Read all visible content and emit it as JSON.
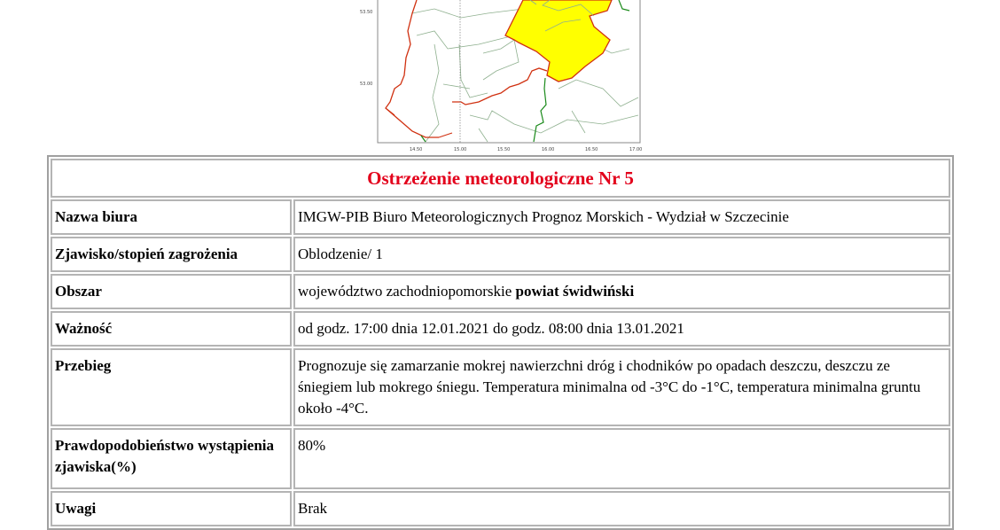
{
  "map": {
    "y_ticks": [
      "53.50",
      "53.00"
    ],
    "x_ticks": [
      "14.50",
      "15.00",
      "15.50",
      "16.00",
      "16.50",
      "17.00"
    ],
    "colors": {
      "warning_area": "#ffff00",
      "voivodeship_border": "#d03010",
      "county_border": "#7fa87f",
      "other_border": "#1a8a1a"
    }
  },
  "warning": {
    "title": "Ostrzeżenie meteorologiczne Nr 5",
    "rows": [
      {
        "label": "Nazwa biura",
        "value": "IMGW-PIB Biuro Meteorologicznych Prognoz Morskich - Wydział w Szczecinie"
      },
      {
        "label": "Zjawisko/stopień zagrożenia",
        "value": "Oblodzenie/ 1"
      },
      {
        "label": "Obszar",
        "value": "województwo zachodniopomorskie",
        "value_bold": "powiat świdwiński"
      },
      {
        "label": "Ważność",
        "value": "od godz. 17:00 dnia 12.01.2021 do godz. 08:00 dnia 13.01.2021"
      },
      {
        "label": "Przebieg",
        "value": "Prognozuje się zamarzanie mokrej nawierzchni dróg i chodników po opadach deszczu, deszczu ze śniegiem lub mokrego śniegu. Temperatura minimalna od -3°C do -1°C, temperatura minimalna gruntu około -4°C."
      },
      {
        "label": "Prawdopodobieństwo wystąpienia zjawiska(%)",
        "value": "80%"
      },
      {
        "label": "Uwagi",
        "value": "Brak"
      }
    ]
  }
}
